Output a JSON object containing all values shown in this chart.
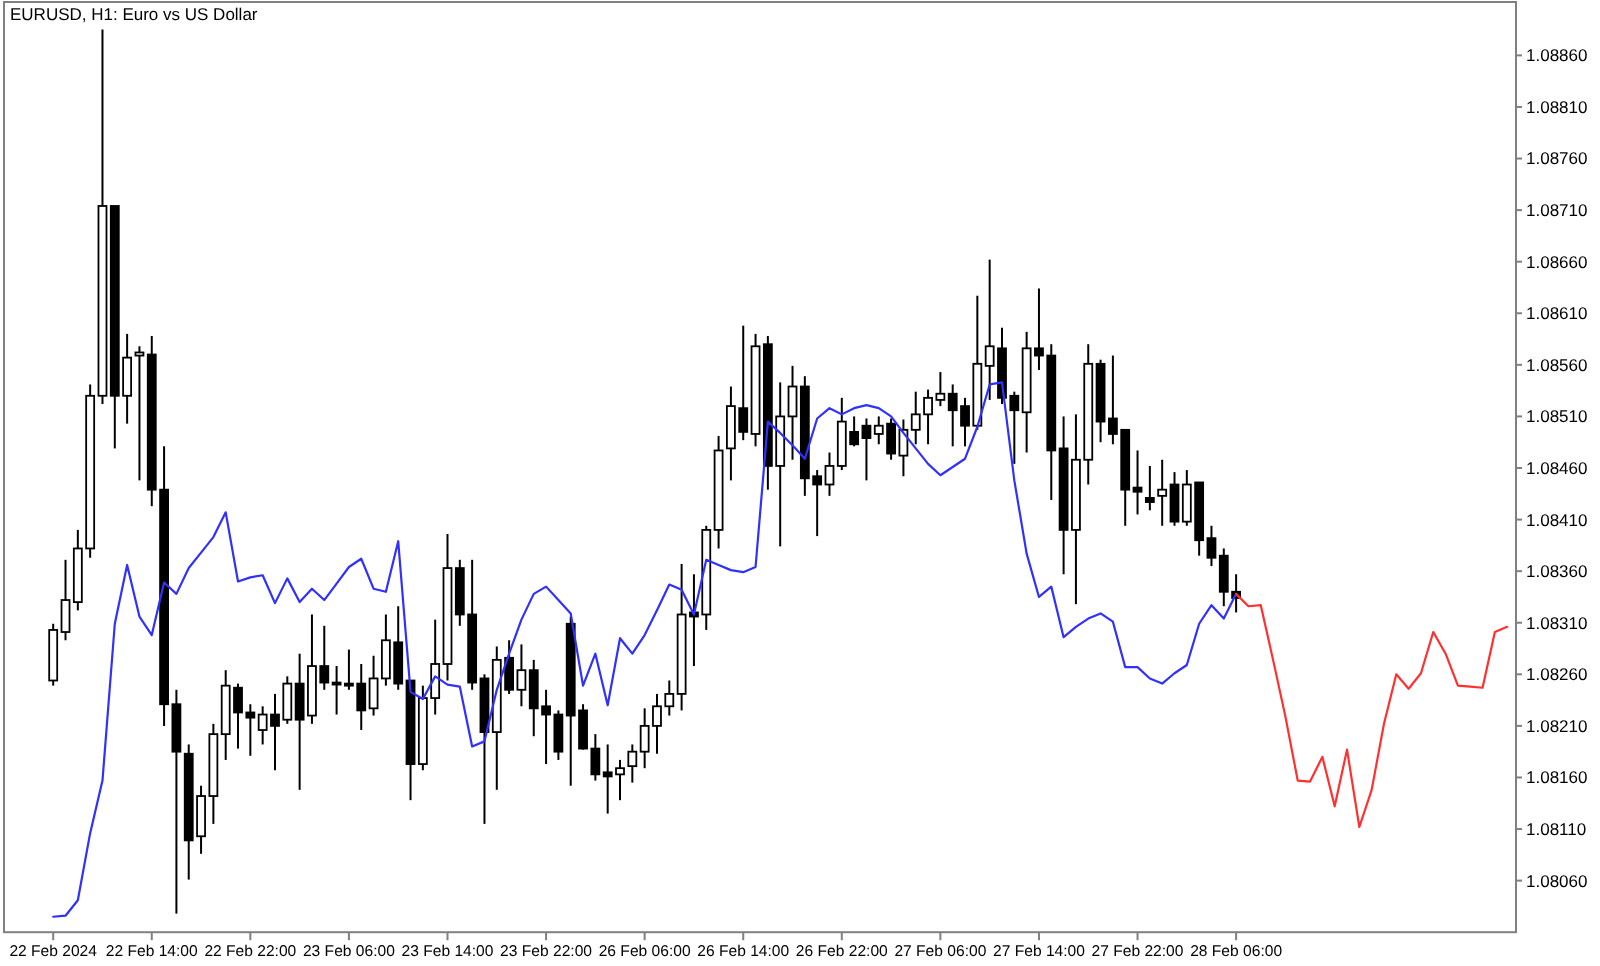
{
  "chart_data": {
    "type": "candlestick",
    "title": "EURUSD, H1: Euro vs US Dollar",
    "categories": [
      "22 Feb 2024",
      null,
      null,
      null,
      null,
      null,
      null,
      null,
      "22 Feb 14:00",
      null,
      null,
      null,
      null,
      null,
      null,
      null,
      "22 Feb 22:00",
      null,
      null,
      null,
      null,
      null,
      null,
      null,
      "23 Feb 06:00",
      null,
      null,
      null,
      null,
      null,
      null,
      null,
      "23 Feb 14:00",
      null,
      null,
      null,
      null,
      null,
      null,
      null,
      "23 Feb 22:00",
      null,
      null,
      null,
      null,
      null,
      null,
      null,
      "26 Feb 06:00",
      null,
      null,
      null,
      null,
      null,
      null,
      null,
      "26 Feb 14:00",
      null,
      null,
      null,
      null,
      null,
      null,
      null,
      "26 Feb 22:00",
      null,
      null,
      null,
      null,
      null,
      null,
      null,
      "27 Feb 06:00",
      null,
      null,
      null,
      null,
      null,
      null,
      null,
      "27 Feb 14:00",
      null,
      null,
      null,
      null,
      null,
      null,
      null,
      "27 Feb 22:00",
      null,
      null,
      null,
      null,
      null,
      null,
      null,
      "28 Feb 06:00",
      null,
      null,
      null,
      null,
      null,
      null,
      null,
      null,
      null,
      null,
      null,
      null,
      null,
      null,
      null,
      null,
      null,
      null,
      null,
      null,
      null,
      null
    ],
    "ohlc": [
      [
        1.08254,
        1.08309,
        1.08249,
        1.08303
      ],
      [
        1.08301,
        1.08371,
        1.08293,
        1.08332
      ],
      [
        1.0833,
        1.084,
        1.08322,
        1.08382
      ],
      [
        1.08382,
        1.08541,
        1.08373,
        1.0853
      ],
      [
        1.0853,
        1.08885,
        1.08522,
        1.08714
      ],
      [
        1.08714,
        1.08714,
        1.08479,
        1.0853
      ],
      [
        1.0853,
        1.0859,
        1.08503,
        1.08567
      ],
      [
        1.08569,
        1.08578,
        1.08448,
        1.08572
      ],
      [
        1.0857,
        1.08588,
        1.08423,
        1.08439
      ],
      [
        1.08439,
        1.08481,
        1.0821,
        1.08231
      ],
      [
        1.08231,
        1.08245,
        1.08028,
        1.08185
      ],
      [
        1.08183,
        1.08192,
        1.08061,
        1.08099
      ],
      [
        1.08103,
        1.08152,
        1.08086,
        1.08142
      ],
      [
        1.08142,
        1.08212,
        1.08115,
        1.08202
      ],
      [
        1.08202,
        1.08264,
        1.08177,
        1.08249
      ],
      [
        1.08247,
        1.08251,
        1.08188,
        1.08223
      ],
      [
        1.08223,
        1.08231,
        1.08181,
        1.08218
      ],
      [
        1.08206,
        1.08229,
        1.08192,
        1.08221
      ],
      [
        1.08221,
        1.08241,
        1.08167,
        1.0821
      ],
      [
        1.08216,
        1.08258,
        1.08212,
        1.08251
      ],
      [
        1.08251,
        1.0828,
        1.08148,
        1.08216
      ],
      [
        1.0822,
        1.08318,
        1.08212,
        1.08268
      ],
      [
        1.08268,
        1.08307,
        1.08245,
        1.08252
      ],
      [
        1.08252,
        1.08268,
        1.08221,
        1.08251
      ],
      [
        1.08251,
        1.08284,
        1.08245,
        1.08249
      ],
      [
        1.08251,
        1.0827,
        1.08206,
        1.08225
      ],
      [
        1.08227,
        1.08278,
        1.0822,
        1.08256
      ],
      [
        1.08256,
        1.08318,
        1.08249,
        1.08293
      ],
      [
        1.08291,
        1.08326,
        1.08245,
        1.08251
      ],
      [
        1.08254,
        1.08254,
        1.08138,
        1.08173
      ],
      [
        1.08173,
        1.08249,
        1.08167,
        1.08237
      ],
      [
        1.08237,
        1.08313,
        1.08221,
        1.0827
      ],
      [
        1.0827,
        1.08396,
        1.08254,
        1.08363
      ],
      [
        1.08363,
        1.08371,
        1.08307,
        1.08318
      ],
      [
        1.08318,
        1.08371,
        1.08245,
        1.08252
      ],
      [
        1.08256,
        1.0826,
        1.08115,
        1.08204
      ],
      [
        1.08204,
        1.08287,
        1.08148,
        1.08274
      ],
      [
        1.08276,
        1.08293,
        1.08241,
        1.08245
      ],
      [
        1.08245,
        1.08289,
        1.08229,
        1.08264
      ],
      [
        1.08264,
        1.08274,
        1.082,
        1.08227
      ],
      [
        1.08229,
        1.08245,
        1.08173,
        1.08221
      ],
      [
        1.08221,
        1.08225,
        1.08177,
        1.08185
      ],
      [
        1.08309,
        1.08316,
        1.08152,
        1.0822
      ],
      [
        1.08225,
        1.08231,
        1.08187,
        1.08188
      ],
      [
        1.08188,
        1.08202,
        1.08157,
        1.08163
      ],
      [
        1.08165,
        1.08192,
        1.08125,
        1.08161
      ],
      [
        1.08163,
        1.08177,
        1.08138,
        1.08169
      ],
      [
        1.08171,
        1.08192,
        1.08155,
        1.08185
      ],
      [
        1.08185,
        1.08227,
        1.08169,
        1.0821
      ],
      [
        1.0821,
        1.08241,
        1.08183,
        1.08229
      ],
      [
        1.08229,
        1.08254,
        1.0822,
        1.08241
      ],
      [
        1.08241,
        1.08367,
        1.08225,
        1.08318
      ],
      [
        1.0832,
        1.08357,
        1.08268,
        1.08316
      ],
      [
        1.08318,
        1.08404,
        1.08303,
        1.084
      ],
      [
        1.084,
        1.08491,
        1.08382,
        1.08477
      ],
      [
        1.08479,
        1.08539,
        1.08448,
        1.0852
      ],
      [
        1.08518,
        1.08598,
        1.08487,
        1.08495
      ],
      [
        1.08493,
        1.0859,
        1.08481,
        1.08578
      ],
      [
        1.0858,
        1.08588,
        1.08439,
        1.08462
      ],
      [
        1.08462,
        1.08543,
        1.08384,
        1.0851
      ],
      [
        1.0851,
        1.08559,
        1.08468,
        1.08539
      ],
      [
        1.08539,
        1.08549,
        1.08433,
        1.0845
      ],
      [
        1.08452,
        1.08458,
        1.08394,
        1.08444
      ],
      [
        1.08444,
        1.08475,
        1.08433,
        1.08462
      ],
      [
        1.08462,
        1.08528,
        1.08458,
        1.08505
      ],
      [
        1.08495,
        1.0851,
        1.08481,
        1.08483
      ],
      [
        1.08501,
        1.08508,
        1.08448,
        1.08489
      ],
      [
        1.08493,
        1.0851,
        1.08483,
        1.08501
      ],
      [
        1.08503,
        1.08508,
        1.08468,
        1.08474
      ],
      [
        1.08472,
        1.08507,
        1.08452,
        1.08497
      ],
      [
        1.08497,
        1.08534,
        1.08483,
        1.08512
      ],
      [
        1.08512,
        1.08536,
        1.08483,
        1.08528
      ],
      [
        1.08526,
        1.08553,
        1.0852,
        1.08532
      ],
      [
        1.08532,
        1.08541,
        1.08481,
        1.08516
      ],
      [
        1.0852,
        1.08528,
        1.08481,
        1.08501
      ],
      [
        1.08501,
        1.08627,
        1.08497,
        1.08561
      ],
      [
        1.08559,
        1.08662,
        1.08526,
        1.08578
      ],
      [
        1.08576,
        1.08596,
        1.08522,
        1.08528
      ],
      [
        1.0853,
        1.08534,
        1.08464,
        1.08516
      ],
      [
        1.08514,
        1.08592,
        1.08475,
        1.08576
      ],
      [
        1.08576,
        1.08634,
        1.08555,
        1.08569
      ],
      [
        1.08569,
        1.0858,
        1.08429,
        1.08477
      ],
      [
        1.08479,
        1.0851,
        1.08357,
        1.084
      ],
      [
        1.084,
        1.08512,
        1.08328,
        1.08468
      ],
      [
        1.08468,
        1.0858,
        1.08444,
        1.08561
      ],
      [
        1.08561,
        1.08565,
        1.08485,
        1.08505
      ],
      [
        1.08508,
        1.08569,
        1.08483,
        1.08493
      ],
      [
        1.08497,
        1.08497,
        1.08404,
        1.08439
      ],
      [
        1.08441,
        1.08477,
        1.08415,
        1.08437
      ],
      [
        1.08431,
        1.08462,
        1.08419,
        1.08427
      ],
      [
        1.08433,
        1.08468,
        1.08404,
        1.08439
      ],
      [
        1.08444,
        1.08456,
        1.08404,
        1.08408
      ],
      [
        1.08408,
        1.08458,
        1.08404,
        1.08444
      ],
      [
        1.08446,
        1.08446,
        1.08375,
        1.0839
      ],
      [
        1.08392,
        1.08404,
        1.08365,
        1.08373
      ],
      [
        1.08375,
        1.08382,
        1.08326,
        1.0834
      ],
      [
        1.0834,
        1.08357,
        1.0832,
        1.08334
      ],
      null,
      null,
      null,
      null,
      null,
      null,
      null,
      null,
      null,
      null,
      null,
      null,
      null,
      null,
      null,
      null,
      null,
      null,
      null,
      null,
      null,
      null
    ],
    "series": [
      {
        "type": "line",
        "color": "#3030ff",
        "values": [
          1.08025,
          1.08026,
          1.08041,
          1.08106,
          1.08157,
          1.08309,
          1.08366,
          1.08316,
          1.08298,
          1.08349,
          1.08338,
          1.08363,
          1.08378,
          1.08393,
          1.08417,
          1.0835,
          1.08354,
          1.08356,
          1.08329,
          1.08353,
          1.0833,
          1.08343,
          1.08332,
          1.08348,
          1.08364,
          1.08372,
          1.08343,
          1.0834,
          1.08389,
          1.08243,
          1.08236,
          1.08258,
          1.0825,
          1.08248,
          1.0819,
          1.08195,
          1.08245,
          1.0828,
          1.08313,
          1.08338,
          1.08345,
          1.08332,
          1.08319,
          1.08249,
          1.0828,
          1.0823,
          1.08295,
          1.0828,
          1.08298,
          1.08322,
          1.08347,
          1.08342,
          1.08318,
          1.08371,
          1.08366,
          1.08361,
          1.08359,
          1.08364,
          1.08505,
          1.08494,
          1.08482,
          1.08469,
          1.08508,
          1.08518,
          1.08512,
          1.08518,
          1.08521,
          1.08518,
          1.0851,
          1.08494,
          1.08479,
          1.08464,
          1.08453,
          1.08461,
          1.08469,
          1.085,
          1.08541,
          1.08543,
          1.08448,
          1.08377,
          1.08335,
          1.08345,
          1.08296,
          1.08306,
          1.08314,
          1.08319,
          1.08311,
          1.08267,
          1.08267,
          1.08256,
          1.08251,
          1.08261,
          1.08269,
          1.08309,
          1.08327,
          1.08314,
          1.08338,
          null,
          null,
          null,
          null,
          null,
          null,
          null,
          null,
          null,
          null,
          null,
          null,
          null,
          null,
          null,
          null,
          null,
          null,
          null,
          null,
          null,
          null
        ]
      },
      {
        "type": "line",
        "color": "#ff3030",
        "values": [
          null,
          null,
          null,
          null,
          null,
          null,
          null,
          null,
          null,
          null,
          null,
          null,
          null,
          null,
          null,
          null,
          null,
          null,
          null,
          null,
          null,
          null,
          null,
          null,
          null,
          null,
          null,
          null,
          null,
          null,
          null,
          null,
          null,
          null,
          null,
          null,
          null,
          null,
          null,
          null,
          null,
          null,
          null,
          null,
          null,
          null,
          null,
          null,
          null,
          null,
          null,
          null,
          null,
          null,
          null,
          null,
          null,
          null,
          null,
          null,
          null,
          null,
          null,
          null,
          null,
          null,
          null,
          null,
          null,
          null,
          null,
          null,
          null,
          null,
          null,
          null,
          null,
          null,
          null,
          null,
          null,
          null,
          null,
          null,
          null,
          null,
          null,
          null,
          null,
          null,
          null,
          null,
          null,
          null,
          null,
          null,
          1.08338,
          1.08326,
          1.08327,
          1.08274,
          1.08219,
          1.08157,
          1.08156,
          1.0818,
          1.08132,
          1.08187,
          1.08112,
          1.08148,
          1.08212,
          1.0826,
          1.08246,
          1.08261,
          1.08301,
          1.0828,
          1.08249,
          1.08248,
          1.08247,
          1.08301,
          1.08306
        ]
      }
    ],
    "ylim": [
      1.0801,
      1.0891
    ],
    "yticks": [
      {
        "value": 1.0806,
        "label": "1.08060"
      },
      {
        "value": 1.0811,
        "label": "1.08110"
      },
      {
        "value": 1.0816,
        "label": "1.08160"
      },
      {
        "value": 1.0821,
        "label": "1.08210"
      },
      {
        "value": 1.0826,
        "label": "1.08260"
      },
      {
        "value": 1.0831,
        "label": "1.08310"
      },
      {
        "value": 1.0836,
        "label": "1.08360"
      },
      {
        "value": 1.0841,
        "label": "1.08410"
      },
      {
        "value": 1.0846,
        "label": "1.08460"
      },
      {
        "value": 1.0851,
        "label": "1.08510"
      },
      {
        "value": 1.0856,
        "label": "1.08560"
      },
      {
        "value": 1.0861,
        "label": "1.08610"
      },
      {
        "value": 1.0866,
        "label": "1.08660"
      },
      {
        "value": 1.0871,
        "label": "1.08710"
      },
      {
        "value": 1.0876,
        "label": "1.08760"
      },
      {
        "value": 1.0881,
        "label": "1.08810"
      },
      {
        "value": 1.0886,
        "label": "1.08860"
      }
    ]
  }
}
